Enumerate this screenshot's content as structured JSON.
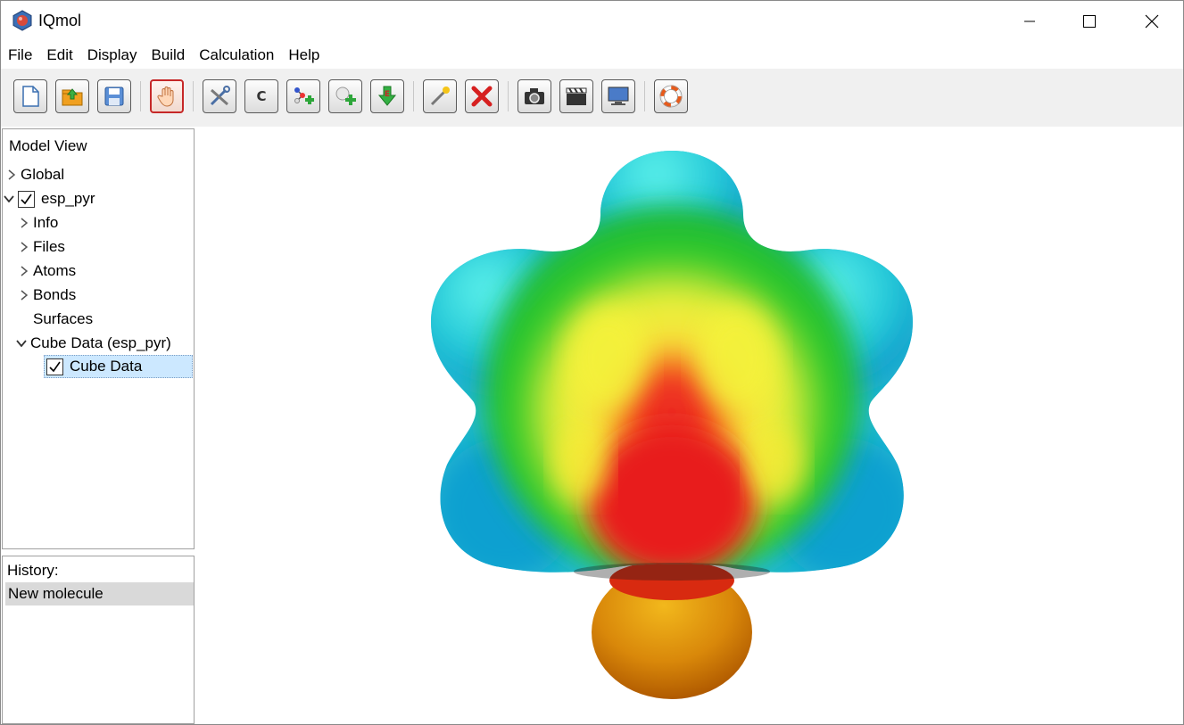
{
  "window": {
    "title": "IQmol"
  },
  "menu": [
    "File",
    "Edit",
    "Display",
    "Build",
    "Calculation",
    "Help"
  ],
  "toolbar": {
    "buttons": [
      {
        "name": "new-file-button",
        "icon": "new-document-icon"
      },
      {
        "name": "open-file-button",
        "icon": "open-folder-icon"
      },
      {
        "name": "save-button",
        "icon": "floppy-disk-icon"
      },
      {
        "name": "manipulate-button",
        "icon": "hand-icon",
        "active": true
      },
      {
        "name": "build-button",
        "icon": "tools-icon"
      },
      {
        "name": "element-button",
        "icon": "carbon-letter-icon",
        "label": "C"
      },
      {
        "name": "add-hydrogens-button",
        "icon": "add-hydrogens-icon"
      },
      {
        "name": "add-fragment-button",
        "icon": "add-fragment-icon"
      },
      {
        "name": "minimize-energy-button",
        "icon": "minimize-energy-icon"
      },
      {
        "name": "select-button",
        "icon": "magic-wand-icon"
      },
      {
        "name": "delete-button",
        "icon": "red-x-icon"
      },
      {
        "name": "screenshot-button",
        "icon": "camera-icon"
      },
      {
        "name": "record-animation-button",
        "icon": "clapperboard-icon"
      },
      {
        "name": "fullscreen-button",
        "icon": "monitor-icon"
      },
      {
        "name": "help-button",
        "icon": "lifebuoy-icon"
      }
    ]
  },
  "model_view": {
    "header": "Model View",
    "items": [
      {
        "label": "Global"
      },
      {
        "label": "esp_pyr"
      },
      {
        "label": "Info"
      },
      {
        "label": "Files"
      },
      {
        "label": "Atoms"
      },
      {
        "label": "Bonds"
      },
      {
        "label": "Surfaces"
      },
      {
        "label": "Cube Data (esp_pyr)"
      },
      {
        "label": "Cube Data"
      }
    ]
  },
  "history": {
    "label": "History:",
    "items": [
      "New molecule"
    ]
  },
  "colors": {
    "toolbar_bg": "#f0f0f0",
    "selection": "#cce8ff",
    "history_selected": "#d9d9d9",
    "active_border": "#c62828"
  }
}
